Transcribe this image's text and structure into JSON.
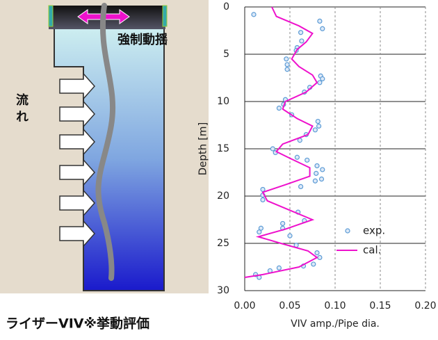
{
  "diagram": {
    "labels": [
      "強制動揺",
      "流れ"
    ],
    "caption": "ライザーVIV※挙動評価"
  },
  "chart_data": {
    "type": "scatter-line",
    "x_label": "VIV amp./Pipe dia.",
    "y_label": "Depth [m]",
    "xlim": [
      0,
      0.2
    ],
    "ylim": [
      0,
      30
    ],
    "y_inverted": true,
    "xticks": [
      {
        "value": 0,
        "label": "0.00"
      },
      {
        "value": 0.05,
        "label": "0.05"
      },
      {
        "value": 0.1,
        "label": "0.10"
      },
      {
        "value": 0.15,
        "label": "0.15"
      },
      {
        "value": 0.2,
        "label": "0.20"
      }
    ],
    "yticks": [
      0,
      5,
      10,
      15,
      20,
      25,
      30
    ],
    "grid": true,
    "legend": "lower right",
    "series": [
      {
        "name": "exp.",
        "kind": "scatter",
        "color": "#5b9bd5",
        "x": [
          0.01,
          0.083,
          0.086,
          0.062,
          0.063,
          0.058,
          0.057,
          0.046,
          0.047,
          0.047,
          0.084,
          0.086,
          0.083,
          0.072,
          0.066,
          0.045,
          0.043,
          0.038,
          0.052,
          0.081,
          0.082,
          0.078,
          0.068,
          0.061,
          0.031,
          0.034,
          0.058,
          0.069,
          0.08,
          0.086,
          0.079,
          0.085,
          0.078,
          0.062,
          0.02,
          0.02,
          0.02,
          0.059,
          0.066,
          0.042,
          0.042,
          0.018,
          0.016,
          0.05,
          0.057,
          0.08,
          0.083,
          0.076,
          0.065,
          0.038,
          0.028,
          0.012,
          0.016
        ],
        "values": [
          0.8,
          1.5,
          2.3,
          2.7,
          3.6,
          4.3,
          4.6,
          5.5,
          6.1,
          6.6,
          7.3,
          7.6,
          8.0,
          8.5,
          9.0,
          9.8,
          10.3,
          10.7,
          11.4,
          12.1,
          12.6,
          13.0,
          13.5,
          14.1,
          15.0,
          15.4,
          15.9,
          16.2,
          16.8,
          17.2,
          17.6,
          18.2,
          18.4,
          19.0,
          19.3,
          19.9,
          20.4,
          21.7,
          22.6,
          22.9,
          23.4,
          23.4,
          23.8,
          24.2,
          25.2,
          26.0,
          26.5,
          27.2,
          27.4,
          27.6,
          27.9,
          28.3,
          28.6
        ]
      },
      {
        "name": "cal.",
        "kind": "line",
        "color": "#ee11cc",
        "x": [
          0.03,
          0.035,
          0.06,
          0.075,
          0.068,
          0.058,
          0.052,
          0.06,
          0.075,
          0.08,
          0.068,
          0.045,
          0.042,
          0.058,
          0.075,
          0.07,
          0.042,
          0.035,
          0.05,
          0.072,
          0.072,
          0.045,
          0.02,
          0.025,
          0.05,
          0.075,
          0.045,
          0.015,
          0.04,
          0.07,
          0.08,
          0.06,
          0.02,
          0
        ],
        "values": [
          0,
          1,
          2,
          2.8,
          3.7,
          4.5,
          5.5,
          6.3,
          7.2,
          8,
          9,
          10,
          10.8,
          11.8,
          12.6,
          13.5,
          14.5,
          15.3,
          16,
          17,
          17.9,
          18.8,
          19.6,
          20.5,
          21.5,
          22.5,
          23.5,
          24.3,
          25,
          25.8,
          26.5,
          27.5,
          28.3,
          28.6
        ]
      }
    ]
  }
}
